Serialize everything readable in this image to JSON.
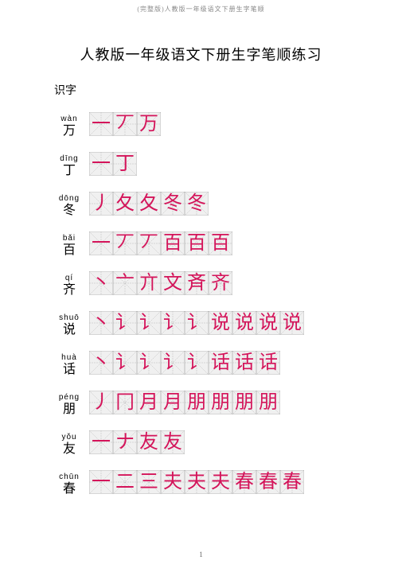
{
  "header_text": "(完整版)人教版一年级语文下册生字笔顺",
  "title": "人教版一年级语文下册生字笔顺练习",
  "section_label": "识字",
  "page_number": "1",
  "grid": {
    "line_color": "#bbbbbb",
    "line_width": 0.5,
    "bg": "#f0f0f0"
  },
  "stroke_style": {
    "color": "#d4145a",
    "font_size": 24,
    "font_family": "KaiTi"
  },
  "entries": [
    {
      "list": "1",
      "pinyin": "wàn",
      "hanzi": "万",
      "strokes": [
        "一",
        "丆",
        "万"
      ]
    },
    {
      "pinyin": "dīng",
      "hanzi": "丁",
      "strokes": [
        "一",
        "丁"
      ]
    },
    {
      "pinyin": "dōng",
      "hanzi": "冬",
      "strokes": [
        "丿",
        "夂",
        "夂",
        "冬",
        "冬"
      ]
    },
    {
      "pinyin": "bǎi",
      "hanzi": "百",
      "strokes": [
        "一",
        "丆",
        "丆",
        "百",
        "百",
        "百"
      ]
    },
    {
      "pinyin": "qí",
      "hanzi": "齐",
      "strokes": [
        "丶",
        "亠",
        "亣",
        "文",
        "斉",
        "齐"
      ]
    },
    {
      "list": "1",
      "pinyin": "shuō",
      "hanzi": "说",
      "strokes": [
        "丶",
        "讠",
        "讠",
        "讠",
        "讠",
        "说",
        "说",
        "说",
        "说"
      ]
    },
    {
      "pinyin": "huà",
      "hanzi": "话",
      "strokes": [
        "丶",
        "讠",
        "讠",
        "讠",
        "讠",
        "话",
        "话",
        "话"
      ]
    },
    {
      "pinyin": "péng",
      "hanzi": "朋",
      "strokes": [
        "丿",
        "冂",
        "月",
        "月",
        "朋",
        "朋",
        "朋",
        "朋"
      ]
    },
    {
      "pinyin": "yǒu",
      "hanzi": "友",
      "strokes": [
        "一",
        "ナ",
        "友",
        "友"
      ]
    },
    {
      "pinyin": "chūn",
      "hanzi": "春",
      "strokes": [
        "一",
        "二",
        "三",
        "夫",
        "夫",
        "夫",
        "春",
        "春",
        "春"
      ]
    }
  ]
}
